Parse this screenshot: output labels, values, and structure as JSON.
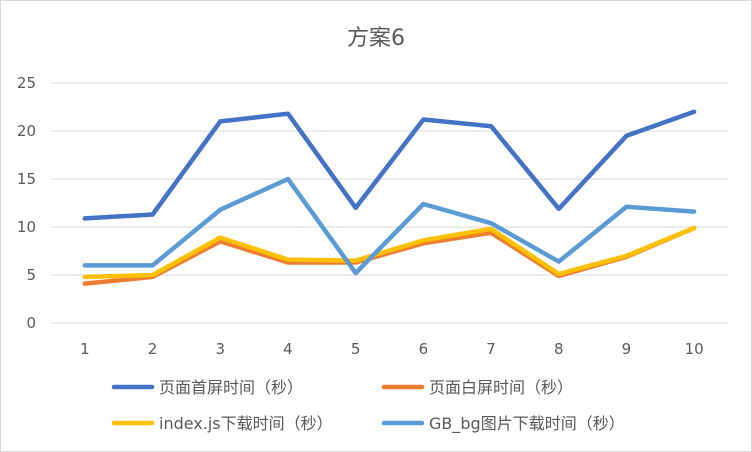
{
  "chart_data": {
    "type": "line",
    "title": "方案6",
    "xlabel": "",
    "ylabel": "",
    "categories": [
      "1",
      "2",
      "3",
      "4",
      "5",
      "6",
      "7",
      "8",
      "9",
      "10"
    ],
    "ylim": [
      0,
      25
    ],
    "yticks": [
      0,
      5,
      10,
      15,
      20,
      25
    ],
    "grid": true,
    "legend_position": "bottom",
    "series": [
      {
        "name": "页面首屏时间（秒）",
        "color": "#4472C4",
        "values": [
          10.9,
          11.3,
          21.0,
          21.8,
          12.0,
          21.2,
          20.5,
          11.9,
          19.5,
          22.0
        ]
      },
      {
        "name": "页面白屏时间（秒）",
        "color": "#ED7D31",
        "values": [
          4.1,
          4.8,
          8.5,
          6.3,
          6.3,
          8.3,
          9.4,
          4.9,
          6.9,
          9.9
        ]
      },
      {
        "name": "index.js下载时间（秒）",
        "color": "#FFC000",
        "values": [
          4.8,
          5.0,
          8.9,
          6.6,
          6.5,
          8.6,
          9.8,
          5.1,
          7.0,
          9.9
        ]
      },
      {
        "name": "GB_bg图片下载时间（秒）",
        "color": "#5B9BD5",
        "values": [
          6.0,
          6.0,
          11.8,
          15.0,
          5.2,
          12.4,
          10.4,
          6.4,
          12.1,
          11.6
        ]
      }
    ]
  }
}
